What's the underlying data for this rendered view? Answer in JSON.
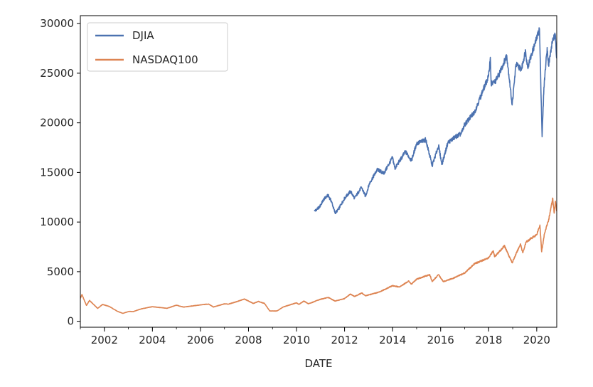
{
  "chart_data": {
    "type": "line",
    "title": "",
    "xlabel": "DATE",
    "ylabel": "",
    "xlim": [
      "2001-01-01",
      "2020-11-01"
    ],
    "ylim": [
      -600,
      30800
    ],
    "x_ticks": [
      "2002",
      "2004",
      "2006",
      "2008",
      "2010",
      "2012",
      "2014",
      "2016",
      "2018",
      "2020"
    ],
    "y_ticks": [
      0,
      5000,
      10000,
      15000,
      20000,
      25000,
      30000
    ],
    "y_tick_labels": [
      "0",
      "5000",
      "10000",
      "15000",
      "20000",
      "25000",
      "30000"
    ],
    "grid": false,
    "legend_position": "upper-left",
    "series": [
      {
        "name": "DJIA",
        "color": "#4c72b0",
        "points": [
          [
            "2010-10-01",
            11100
          ],
          [
            "2010-12-15",
            11500
          ],
          [
            "2011-02-20",
            12300
          ],
          [
            "2011-04-25",
            12700
          ],
          [
            "2011-06-15",
            12100
          ],
          [
            "2011-08-10",
            10900
          ],
          [
            "2011-10-01",
            11300
          ],
          [
            "2012-01-01",
            12400
          ],
          [
            "2012-04-01",
            13100
          ],
          [
            "2012-06-01",
            12400
          ],
          [
            "2012-09-15",
            13500
          ],
          [
            "2012-11-15",
            12600
          ],
          [
            "2013-01-15",
            13900
          ],
          [
            "2013-05-15",
            15300
          ],
          [
            "2013-08-20",
            14900
          ],
          [
            "2013-12-31",
            16500
          ],
          [
            "2014-02-05",
            15400
          ],
          [
            "2014-07-15",
            17100
          ],
          [
            "2014-10-15",
            16200
          ],
          [
            "2014-12-31",
            17900
          ],
          [
            "2015-05-20",
            18300
          ],
          [
            "2015-08-25",
            15700
          ],
          [
            "2015-12-01",
            17700
          ],
          [
            "2016-01-20",
            15800
          ],
          [
            "2016-04-20",
            18000
          ],
          [
            "2016-08-15",
            18600
          ],
          [
            "2016-11-10",
            18900
          ],
          [
            "2016-12-31",
            19800
          ],
          [
            "2017-06-01",
            21100
          ],
          [
            "2017-12-31",
            24700
          ],
          [
            "2018-01-26",
            26600
          ],
          [
            "2018-02-08",
            23900
          ],
          [
            "2018-04-15",
            24200
          ],
          [
            "2018-06-15",
            25000
          ],
          [
            "2018-10-03",
            26800
          ],
          [
            "2018-12-24",
            21800
          ],
          [
            "2019-02-20",
            25900
          ],
          [
            "2019-05-15",
            25400
          ],
          [
            "2019-07-15",
            27300
          ],
          [
            "2019-08-15",
            25600
          ],
          [
            "2019-12-31",
            28500
          ],
          [
            "2020-02-12",
            29500
          ],
          [
            "2020-03-23",
            18600
          ],
          [
            "2020-04-20",
            23600
          ],
          [
            "2020-06-08",
            27600
          ],
          [
            "2020-06-30",
            25800
          ],
          [
            "2020-08-31",
            28400
          ],
          [
            "2020-10-12",
            28800
          ],
          [
            "2020-10-31",
            26500
          ]
        ]
      },
      {
        "name": "NASDAQ100",
        "color": "#dd8452",
        "points": [
          [
            "2001-01-01",
            2300
          ],
          [
            "2001-01-25",
            2700
          ],
          [
            "2001-04-04",
            1600
          ],
          [
            "2001-05-20",
            2100
          ],
          [
            "2001-09-21",
            1300
          ],
          [
            "2001-12-05",
            1700
          ],
          [
            "2002-03-15",
            1500
          ],
          [
            "2002-07-20",
            1000
          ],
          [
            "2002-10-08",
            800
          ],
          [
            "2003-01-15",
            1000
          ],
          [
            "2003-03-11",
            970
          ],
          [
            "2003-07-15",
            1250
          ],
          [
            "2003-12-31",
            1470
          ],
          [
            "2004-08-12",
            1310
          ],
          [
            "2004-12-31",
            1620
          ],
          [
            "2005-04-20",
            1430
          ],
          [
            "2005-12-31",
            1650
          ],
          [
            "2006-05-05",
            1740
          ],
          [
            "2006-07-17",
            1440
          ],
          [
            "2006-12-31",
            1760
          ],
          [
            "2007-03-01",
            1730
          ],
          [
            "2007-07-15",
            2000
          ],
          [
            "2007-10-31",
            2240
          ],
          [
            "2008-03-15",
            1800
          ],
          [
            "2008-06-01",
            2000
          ],
          [
            "2008-09-01",
            1800
          ],
          [
            "2008-11-20",
            1040
          ],
          [
            "2009-03-09",
            1040
          ],
          [
            "2009-06-15",
            1450
          ],
          [
            "2009-12-31",
            1860
          ],
          [
            "2010-02-05",
            1700
          ],
          [
            "2010-04-23",
            2040
          ],
          [
            "2010-07-01",
            1760
          ],
          [
            "2010-12-31",
            2220
          ],
          [
            "2011-05-01",
            2400
          ],
          [
            "2011-08-08",
            2040
          ],
          [
            "2011-12-31",
            2280
          ],
          [
            "2012-03-31",
            2750
          ],
          [
            "2012-06-01",
            2500
          ],
          [
            "2012-09-20",
            2850
          ],
          [
            "2012-11-15",
            2570
          ],
          [
            "2013-06-15",
            2950
          ],
          [
            "2013-12-31",
            3590
          ],
          [
            "2014-04-15",
            3450
          ],
          [
            "2014-09-01",
            4050
          ],
          [
            "2014-10-15",
            3750
          ],
          [
            "2014-12-31",
            4240
          ],
          [
            "2015-07-20",
            4700
          ],
          [
            "2015-08-25",
            4000
          ],
          [
            "2015-12-01",
            4700
          ],
          [
            "2016-02-10",
            4000
          ],
          [
            "2016-06-27",
            4300
          ],
          [
            "2016-12-31",
            4860
          ],
          [
            "2017-06-01",
            5800
          ],
          [
            "2017-12-31",
            6400
          ],
          [
            "2018-03-12",
            7100
          ],
          [
            "2018-04-02",
            6500
          ],
          [
            "2018-08-29",
            7600
          ],
          [
            "2018-12-24",
            5900
          ],
          [
            "2019-04-30",
            7800
          ],
          [
            "2019-06-03",
            6900
          ],
          [
            "2019-07-25",
            8000
          ],
          [
            "2019-12-31",
            8730
          ],
          [
            "2020-02-19",
            9700
          ],
          [
            "2020-03-16",
            7000
          ],
          [
            "2020-04-30",
            8900
          ],
          [
            "2020-06-30",
            10200
          ],
          [
            "2020-09-02",
            12400
          ],
          [
            "2020-09-23",
            10900
          ],
          [
            "2020-10-12",
            12100
          ],
          [
            "2020-10-31",
            11100
          ]
        ]
      }
    ]
  }
}
